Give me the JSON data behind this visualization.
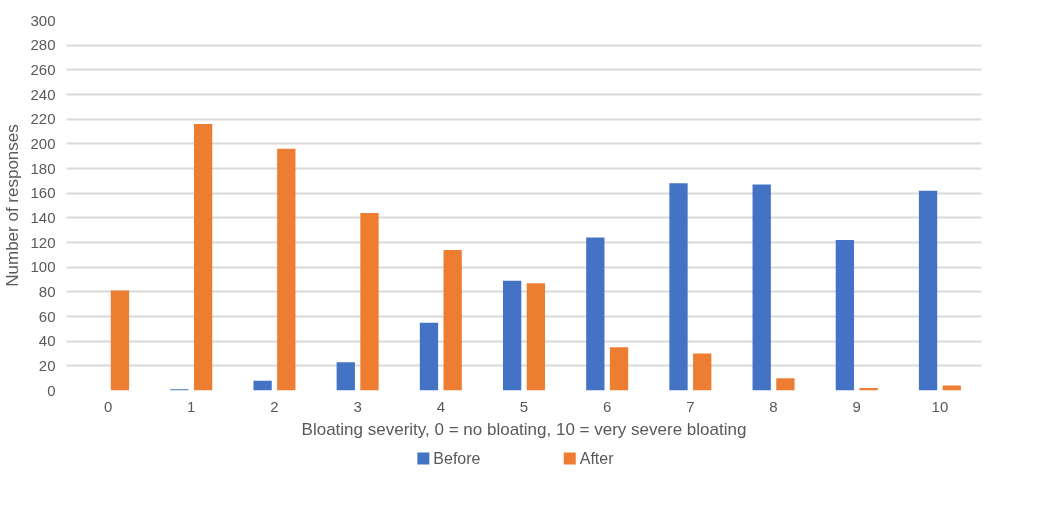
{
  "chart_data": {
    "type": "bar",
    "xlabel": "Bloating severity, 0 = no bloating, 10 = very severe bloating",
    "ylabel": "Number of responses",
    "categories": [
      "0",
      "1",
      "2",
      "3",
      "4",
      "5",
      "6",
      "7",
      "8",
      "9",
      "10"
    ],
    "series": [
      {
        "name": "Before",
        "color": "#4472c4",
        "values": [
          0,
          1,
          8,
          23,
          55,
          89,
          124,
          168,
          167,
          122,
          162
        ]
      },
      {
        "name": "After",
        "color": "#ed7d31",
        "values": [
          81,
          216,
          196,
          144,
          114,
          87,
          35,
          30,
          10,
          2,
          4
        ]
      }
    ],
    "ylim": [
      0,
      300
    ],
    "yticks": [
      0,
      20,
      40,
      60,
      80,
      100,
      120,
      140,
      160,
      180,
      200,
      220,
      240,
      260,
      280,
      300
    ],
    "grid": "y",
    "legend": "bottom"
  }
}
